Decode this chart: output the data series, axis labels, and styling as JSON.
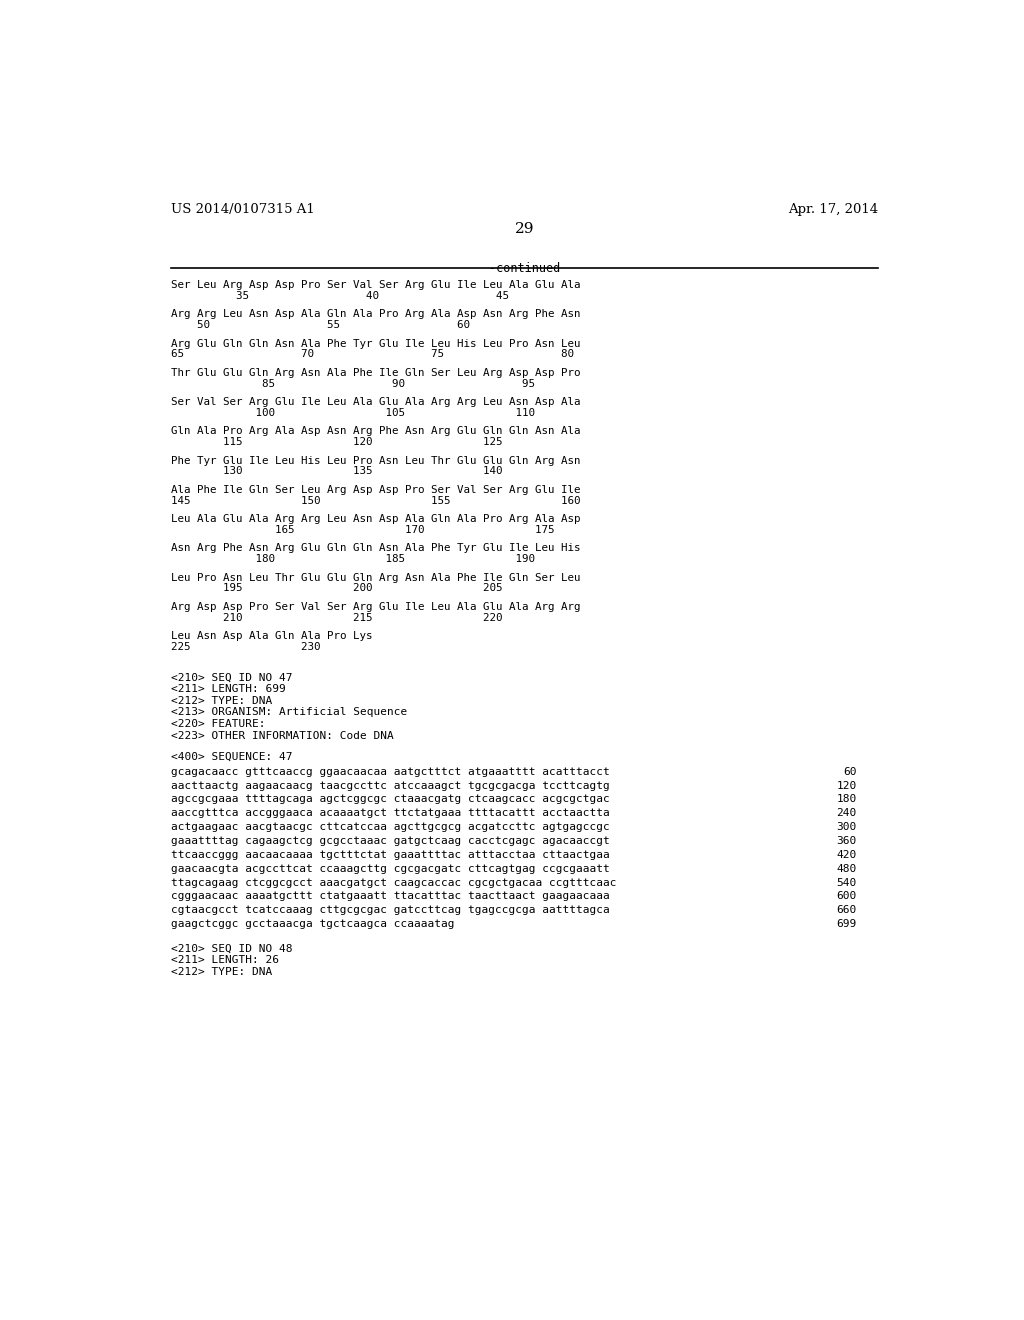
{
  "header_left": "US 2014/0107315 A1",
  "header_right": "Apr. 17, 2014",
  "page_number": "29",
  "continued_label": "-continued",
  "background_color": "#ffffff",
  "text_color": "#000000",
  "aa_groups": [
    {
      "aa": "Ser Leu Arg Asp Asp Pro Ser Val Ser Arg Glu Ile Leu Ala Glu Ala",
      "nums": "          35                  40                  45"
    },
    {
      "aa": "Arg Arg Leu Asn Asp Ala Gln Ala Pro Arg Ala Asp Asn Arg Phe Asn",
      "nums": "    50                  55                  60"
    },
    {
      "aa": "Arg Glu Gln Gln Asn Ala Phe Tyr Glu Ile Leu His Leu Pro Asn Leu",
      "nums": "65                  70                  75                  80"
    },
    {
      "aa": "Thr Glu Glu Gln Arg Asn Ala Phe Ile Gln Ser Leu Arg Asp Asp Pro",
      "nums": "              85                  90                  95"
    },
    {
      "aa": "Ser Val Ser Arg Glu Ile Leu Ala Glu Ala Arg Arg Leu Asn Asp Ala",
      "nums": "             100                 105                 110"
    },
    {
      "aa": "Gln Ala Pro Arg Ala Asp Asn Arg Phe Asn Arg Glu Gln Gln Asn Ala",
      "nums": "        115                 120                 125"
    },
    {
      "aa": "Phe Tyr Glu Ile Leu His Leu Pro Asn Leu Thr Glu Glu Gln Arg Asn",
      "nums": "        130                 135                 140"
    },
    {
      "aa": "Ala Phe Ile Gln Ser Leu Arg Asp Asp Pro Ser Val Ser Arg Glu Ile",
      "nums": "145                 150                 155                 160"
    },
    {
      "aa": "Leu Ala Glu Ala Arg Arg Leu Asn Asp Ala Gln Ala Pro Arg Ala Asp",
      "nums": "                165                 170                 175"
    },
    {
      "aa": "Asn Arg Phe Asn Arg Glu Gln Gln Asn Ala Phe Tyr Glu Ile Leu His",
      "nums": "             180                 185                 190"
    },
    {
      "aa": "Leu Pro Asn Leu Thr Glu Glu Gln Arg Asn Ala Phe Ile Gln Ser Leu",
      "nums": "        195                 200                 205"
    },
    {
      "aa": "Arg Asp Asp Pro Ser Val Ser Arg Glu Ile Leu Ala Glu Ala Arg Arg",
      "nums": "        210                 215                 220"
    },
    {
      "aa": "Leu Asn Asp Ala Gln Ala Pro Lys",
      "nums": "225                 230"
    }
  ],
  "seq_metadata": [
    "<210> SEQ ID NO 47",
    "<211> LENGTH: 699",
    "<212> TYPE: DNA",
    "<213> ORGANISM: Artificial Sequence",
    "<220> FEATURE:",
    "<223> OTHER INFORMATION: Code DNA"
  ],
  "seq_label": "<400> SEQUENCE: 47",
  "dna_lines": [
    {
      "seq": "gcagacaacc gtttcaaccg ggaacaacaa aatgctttct atgaaatttt acatttacct",
      "num": "60"
    },
    {
      "seq": "aacttaactg aagaacaacg taacgccttc atccaaagct tgcgcgacga tccttcagtg",
      "num": "120"
    },
    {
      "seq": "agccgcgaaa ttttagcaga agctcggcgc ctaaacgatg ctcaagcacc acgcgctgac",
      "num": "180"
    },
    {
      "seq": "aaccgtttca accgggaaca acaaaatgct ttctatgaaa ttttacattt acctaactta",
      "num": "240"
    },
    {
      "seq": "actgaagaac aacgtaacgc cttcatccaa agcttgcgcg acgatccttc agtgagccgc",
      "num": "300"
    },
    {
      "seq": "gaaattttag cagaagctcg gcgcctaaac gatgctcaag cacctcgagc agacaaccgt",
      "num": "360"
    },
    {
      "seq": "ttcaaccggg aacaacaaaa tgctttctat gaaattttac atttacctaa cttaactgaa",
      "num": "420"
    },
    {
      "seq": "gaacaacgta acgccttcat ccaaagcttg cgcgacgatc cttcagtgag ccgcgaaatt",
      "num": "480"
    },
    {
      "seq": "ttagcagaag ctcggcgcct aaacgatgct caagcaccac cgcgctgacaa ccgtttcaac",
      "num": "540"
    },
    {
      "seq": "cgggaacaac aaaatgcttt ctatgaaatt ttacatttac taacttaact gaagaacaaa",
      "num": "600"
    },
    {
      "seq": "cgtaacgcct tcatccaaag cttgcgcgac gatccttcag tgagccgcga aattttagca",
      "num": "660"
    },
    {
      "seq": "gaagctcggc gcctaaacga tgctcaagca ccaaaatag",
      "num": "699"
    }
  ],
  "footer_metadata": [
    "<210> SEQ ID NO 48",
    "<211> LENGTH: 26",
    "<212> TYPE: DNA"
  ]
}
